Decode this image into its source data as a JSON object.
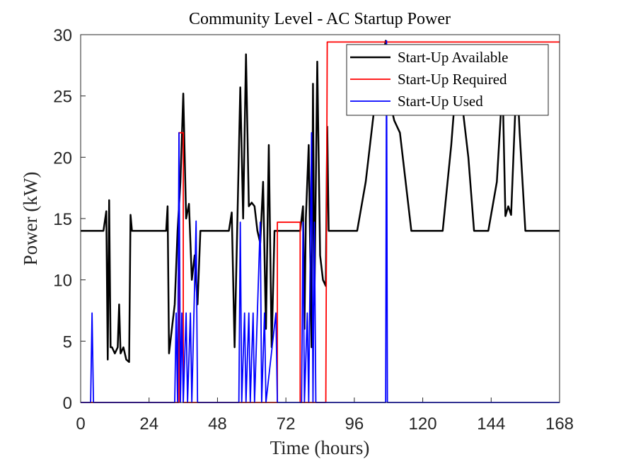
{
  "chart_data": {
    "type": "line",
    "title": "Community Level - AC Startup Power",
    "xlabel": "Time (hours)",
    "ylabel": "Power (kW)",
    "xlim": [
      0,
      168
    ],
    "xticks": [
      0,
      24,
      48,
      72,
      96,
      120,
      144,
      168
    ],
    "ylim": [
      0,
      30
    ],
    "yticks": [
      0,
      5,
      10,
      15,
      20,
      25,
      30
    ],
    "legend": "upper right",
    "series": [
      {
        "name": "Start-Up Available",
        "color": "#000000",
        "x": [
          0,
          8,
          9,
          9.5,
          10,
          10.5,
          11,
          12,
          13,
          13.5,
          14,
          15,
          16,
          17,
          17.5,
          18,
          30,
          30.5,
          31,
          32,
          33,
          34,
          35,
          36,
          37,
          38,
          39,
          40,
          41,
          42,
          52,
          53,
          54,
          55,
          56,
          57,
          58,
          59,
          60,
          61,
          62,
          63,
          64,
          65,
          66,
          67,
          68,
          77,
          78,
          78.5,
          79,
          80,
          81,
          81.5,
          82,
          83,
          84,
          85,
          86,
          86.5,
          87,
          97,
          100,
          103,
          106,
          107,
          108,
          109,
          110,
          112,
          114,
          116,
          127,
          130,
          132,
          134,
          136,
          138,
          143,
          146,
          148,
          149,
          150,
          151,
          153,
          154,
          156,
          168
        ],
        "values": [
          14,
          14,
          15.6,
          3.5,
          16.5,
          4.5,
          4.5,
          4,
          4.5,
          8,
          4,
          4.5,
          3.5,
          3.3,
          15.3,
          14,
          14,
          16,
          4,
          6,
          8,
          14,
          18,
          25.2,
          15,
          16.2,
          10,
          12,
          8,
          14,
          14,
          15.5,
          4.5,
          15,
          25.7,
          15,
          28.4,
          16,
          16.3,
          16,
          14,
          13,
          18,
          6,
          21,
          4.5,
          14,
          14,
          16,
          6,
          15,
          21,
          4.5,
          26,
          8,
          27.8,
          12,
          10,
          9.5,
          22.5,
          14,
          14,
          18,
          24,
          28,
          29.5,
          28,
          24,
          23,
          22,
          18,
          14,
          14,
          21,
          27,
          24,
          20,
          14,
          14,
          18,
          26,
          15.2,
          16,
          15.3,
          27,
          22,
          14,
          14
        ]
      },
      {
        "name": "Start-Up Required",
        "color": "#ff0000",
        "x": [
          0,
          34.5,
          34.5,
          36,
          36,
          69,
          69,
          77,
          77,
          86,
          86.5,
          168
        ],
        "values": [
          0,
          0,
          22,
          22,
          0,
          0,
          14.7,
          14.7,
          0,
          0,
          29.4,
          29.4
        ]
      },
      {
        "name": "Start-Up Used",
        "color": "#0000ff",
        "x": [
          0,
          3.5,
          4,
          4.5,
          33,
          33.5,
          34,
          34.5,
          35,
          35.5,
          36,
          37,
          37.5,
          38.5,
          39,
          40.5,
          41,
          55.5,
          56,
          56.5,
          57.5,
          58,
          59,
          59.5,
          60.5,
          61,
          63,
          63.5,
          64.5,
          65,
          68.5,
          69,
          77.5,
          78,
          78.5,
          79.5,
          80,
          81,
          81.5,
          82,
          82.5,
          107,
          107.3,
          107.6,
          168
        ],
        "values": [
          0,
          0,
          7.3,
          0,
          0,
          7.3,
          0,
          22,
          0,
          7.3,
          0,
          7.3,
          0,
          7.3,
          0,
          14.8,
          0,
          0,
          14.7,
          0,
          7.3,
          0,
          7.3,
          0,
          7.3,
          0,
          14.7,
          0,
          7.3,
          0,
          7.3,
          0,
          0,
          14.7,
          0,
          7.3,
          0,
          22,
          0,
          14.7,
          0,
          0,
          29.5,
          0,
          0
        ]
      }
    ]
  }
}
